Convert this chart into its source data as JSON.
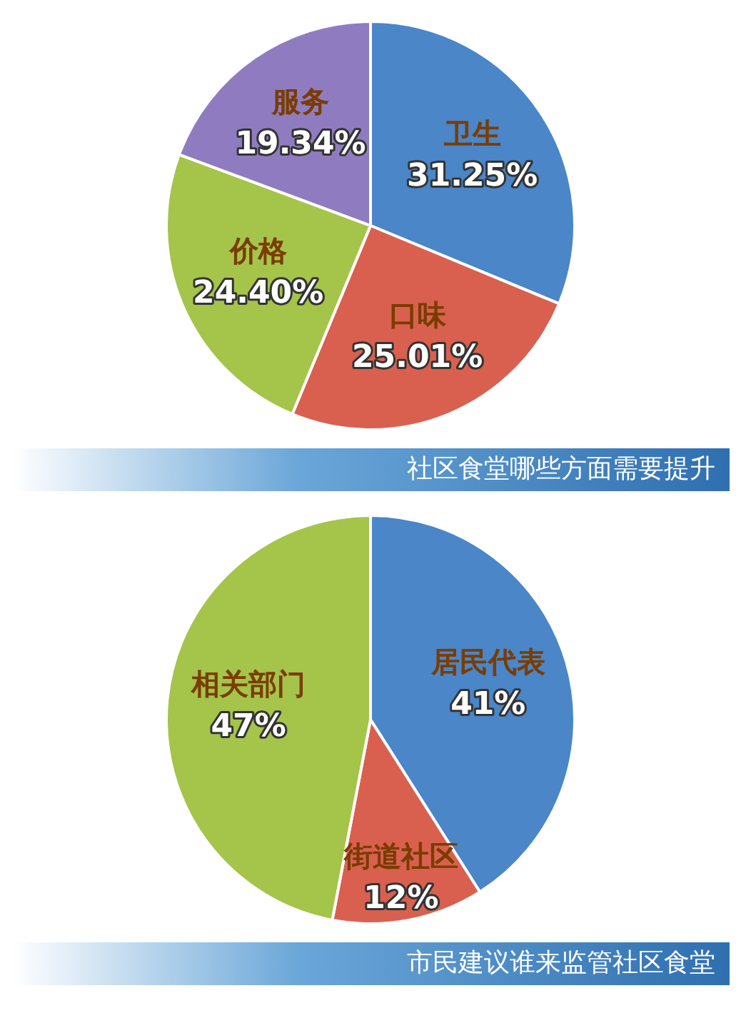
{
  "chart_data": [
    {
      "type": "pie",
      "title": "社区食堂哪些方面需要提升",
      "categories": [
        "卫生",
        "口味",
        "价格",
        "服务"
      ],
      "values": [
        31.25,
        25.01,
        24.4,
        19.34
      ],
      "colors": [
        "#4a86c8",
        "#d9604f",
        "#a5c44a",
        "#8f7cc0"
      ],
      "value_labels": [
        "31.25%",
        "25.01%",
        "24.40%",
        "19.34%"
      ],
      "legend": false
    },
    {
      "type": "pie",
      "title": "市民建议谁来监管社区食堂",
      "categories": [
        "居民代表",
        "街道社区",
        "相关部门"
      ],
      "values": [
        41,
        12,
        47
      ],
      "colors": [
        "#4a86c8",
        "#d9604f",
        "#a5c44a"
      ],
      "value_labels": [
        "41%",
        "12%",
        "47%"
      ],
      "legend": false
    }
  ]
}
